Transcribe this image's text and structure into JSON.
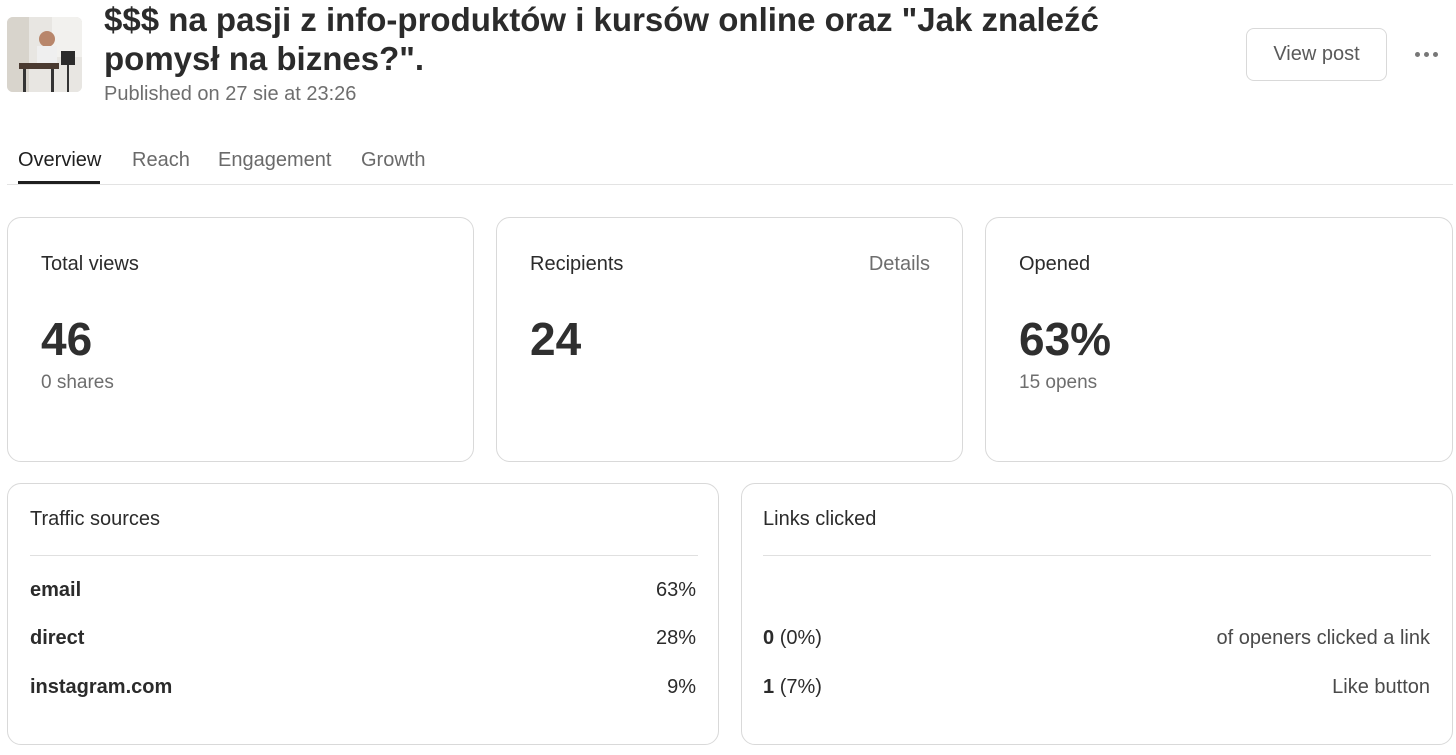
{
  "post": {
    "title": "$$$ na pasji z info-produktów i kursów online oraz \"Jak znaleźć pomysł na biznes?\".",
    "published": "Published on 27 sie at 23:26",
    "view_post_label": "View post"
  },
  "tabs": [
    {
      "label": "Overview"
    },
    {
      "label": "Reach"
    },
    {
      "label": "Engagement"
    },
    {
      "label": "Growth"
    }
  ],
  "stats": {
    "total_views": {
      "label": "Total views",
      "value": "46",
      "sub": "0 shares"
    },
    "recipients": {
      "label": "Recipients",
      "value": "24",
      "details_label": "Details"
    },
    "opened": {
      "label": "Opened",
      "value": "63%",
      "sub": "15 opens"
    }
  },
  "traffic": {
    "title": "Traffic sources",
    "rows": [
      {
        "source": "email",
        "pct": "63%"
      },
      {
        "source": "direct",
        "pct": "28%"
      },
      {
        "source": "instagram.com",
        "pct": "9%"
      }
    ]
  },
  "links": {
    "title": "Links clicked",
    "rows": [
      {
        "count": "0",
        "pct": "(0%)",
        "desc": "of openers clicked a link"
      },
      {
        "count": "1",
        "pct": "(7%)",
        "desc": "Like button"
      }
    ]
  }
}
